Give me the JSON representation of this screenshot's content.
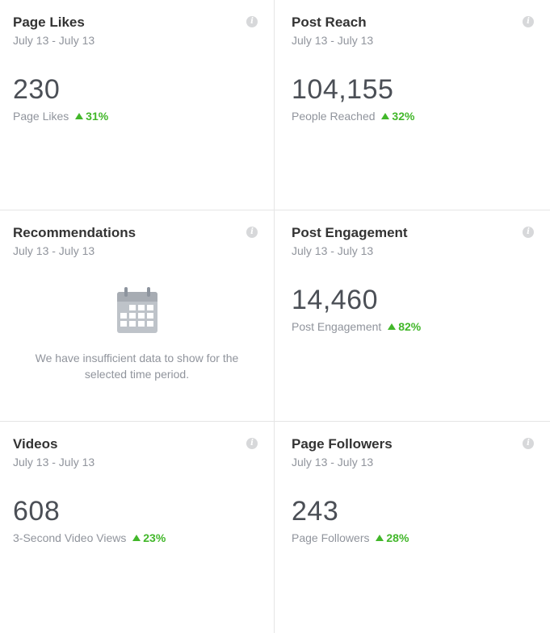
{
  "cards": [
    {
      "title": "Page Likes",
      "date_range": "July 13 - July 13",
      "value": "230",
      "label": "Page Likes",
      "change": "31%"
    },
    {
      "title": "Post Reach",
      "date_range": "July 13 - July 13",
      "value": "104,155",
      "label": "People Reached",
      "change": "32%"
    },
    {
      "title": "Recommendations",
      "date_range": "July 13 - July 13",
      "empty_message": "We have insufficient data to show for the selected time period.",
      "empty_icon": "calendar-icon"
    },
    {
      "title": "Post Engagement",
      "date_range": "July 13 - July 13",
      "value": "14,460",
      "label": "Post Engagement",
      "change": "82%"
    },
    {
      "title": "Videos",
      "date_range": "July 13 - July 13",
      "value": "608",
      "label": "3-Second Video Views",
      "change": "23%"
    },
    {
      "title": "Page Followers",
      "date_range": "July 13 - July 13",
      "value": "243",
      "label": "Page Followers",
      "change": "28%"
    }
  ],
  "icons": {
    "info": "info-icon",
    "trend_up": "up-arrow-icon"
  },
  "colors": {
    "positive": "#42b72a",
    "muted_text": "#90949c",
    "metric_text": "#4b4f56",
    "divider": "#e5e5e5"
  }
}
